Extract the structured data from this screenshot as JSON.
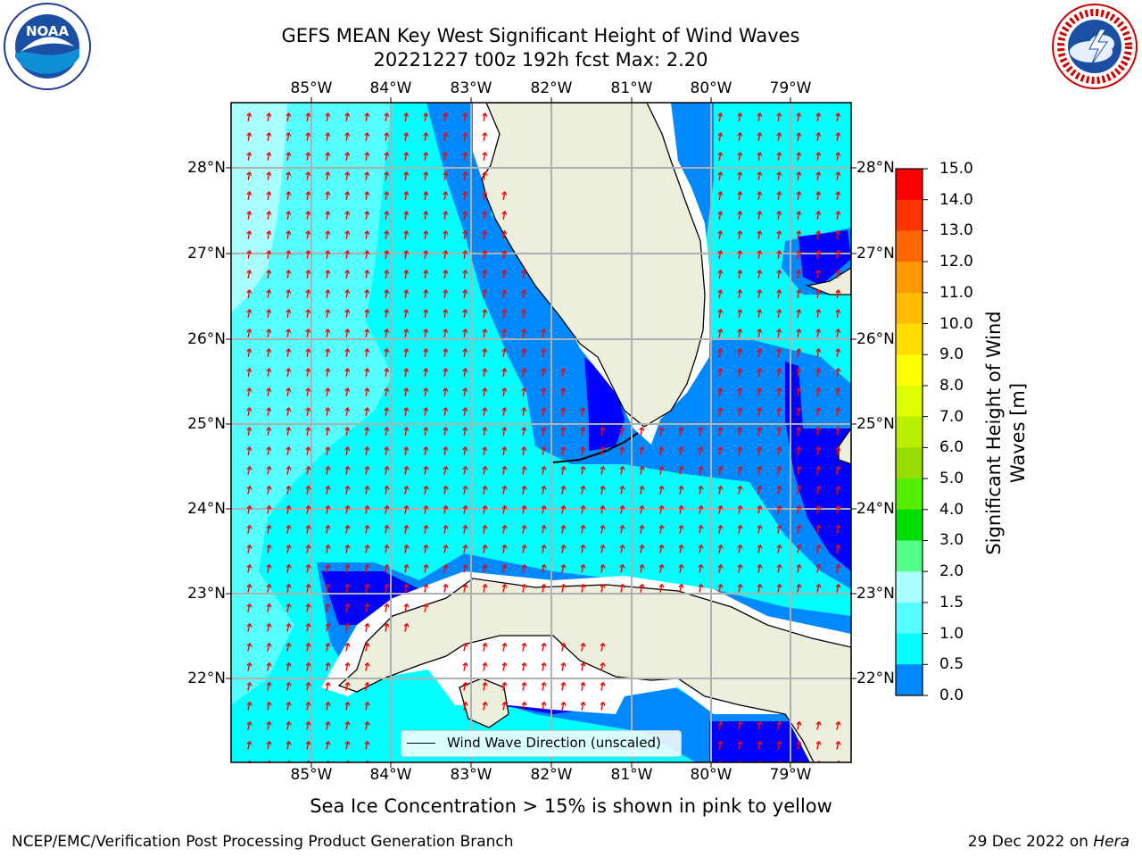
{
  "title_line1": "GEFS MEAN Key West Significant Height of Wind Waves",
  "title_line2": "20221227 t00z 192h fcst   Max: 2.20",
  "map": {
    "lon_ticks": [
      "85°W",
      "84°W",
      "83°W",
      "82°W",
      "81°W",
      "80°W",
      "79°W"
    ],
    "lat_ticks": [
      "28°N",
      "27°N",
      "26°N",
      "25°N",
      "24°N",
      "23°N",
      "22°N"
    ],
    "land_color": "#eeeedd",
    "arrow_color": "#ff0000",
    "grid_color": "#b0b0b0"
  },
  "legend": {
    "label": "Wind Wave Direction (unscaled)"
  },
  "colorbar": {
    "title": "Significant Height of Wind Waves [m]",
    "labels": [
      "15.0",
      "14.0",
      "13.0",
      "12.0",
      "11.0",
      "10.0",
      "9.0",
      "8.0",
      "7.0",
      "6.0",
      "5.0",
      "4.0",
      "3.0",
      "2.0",
      "1.5",
      "1.0",
      "0.5",
      "0.0"
    ],
    "colors": [
      "#ff0000",
      "#ff3300",
      "#ff6600",
      "#ff9900",
      "#ffbb00",
      "#ffdd00",
      "#ffff00",
      "#ddff00",
      "#bbee00",
      "#99dd00",
      "#55ee00",
      "#00dd00",
      "#55ff88",
      "#aaffff",
      "#55ffff",
      "#00ffff",
      "#0088ff",
      "#0000ff"
    ]
  },
  "caption": "Sea Ice Concentration > 15% is shown in pink to yellow",
  "footer_left": "NCEP/EMC/Verification Post Processing Product Generation Branch",
  "footer_right_prefix": "29 Dec 2022 on ",
  "footer_right_host": "Hera",
  "logos": {
    "left": "noaa-logo",
    "right": "nws-logo"
  }
}
